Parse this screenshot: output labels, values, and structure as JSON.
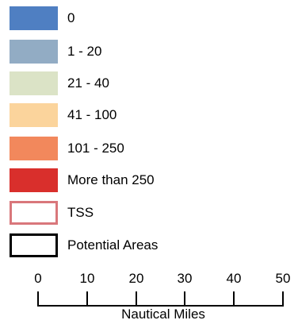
{
  "legend": {
    "items": [
      {
        "label": "0",
        "fill": "#4f7fc2",
        "kind": "fill"
      },
      {
        "label": "1 - 20",
        "fill": "#92acc4",
        "kind": "fill"
      },
      {
        "label": "21 - 40",
        "fill": "#dbe3c6",
        "kind": "fill"
      },
      {
        "label": "41 - 100",
        "fill": "#fbd49c",
        "kind": "fill"
      },
      {
        "label": "101 - 250",
        "fill": "#f2885c",
        "kind": "fill"
      },
      {
        "label": "More than 250",
        "fill": "#d92f2c",
        "kind": "fill"
      },
      {
        "label": "TSS",
        "stroke": "#d9777b",
        "kind": "outline"
      },
      {
        "label": "Potential Areas",
        "stroke": "#000000",
        "kind": "outline"
      }
    ]
  },
  "scale_bar": {
    "ticks": [
      "0",
      "10",
      "20",
      "30",
      "40",
      "50"
    ],
    "units": "Nautical Miles"
  }
}
